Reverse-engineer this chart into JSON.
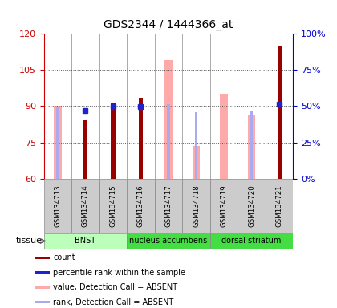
{
  "title": "GDS2344 / 1444366_at",
  "samples": [
    "GSM134713",
    "GSM134714",
    "GSM134715",
    "GSM134716",
    "GSM134717",
    "GSM134718",
    "GSM134719",
    "GSM134720",
    "GSM134721"
  ],
  "tissues": [
    {
      "label": "BNST",
      "start": 0,
      "end": 3,
      "color": "#bbffbb"
    },
    {
      "label": "nucleus accumbens",
      "start": 3,
      "end": 6,
      "color": "#44dd44"
    },
    {
      "label": "dorsal striatum",
      "start": 6,
      "end": 9,
      "color": "#44ee44"
    }
  ],
  "ylim_left": [
    60,
    120
  ],
  "ylim_right": [
    0,
    100
  ],
  "yticks_left": [
    60,
    75,
    90,
    105,
    120
  ],
  "yticks_right": [
    0,
    25,
    50,
    75,
    100
  ],
  "count_color": "#990000",
  "rank_color": "#2222cc",
  "absent_value_color": "#ffaaaa",
  "absent_rank_color": "#aaaaee",
  "count_values": [
    null,
    84.5,
    91.5,
    93.5,
    null,
    null,
    null,
    null,
    115.0
  ],
  "rank_pct_values": [
    null,
    47.0,
    49.5,
    49.5,
    null,
    null,
    null,
    null,
    51.5
  ],
  "absent_value_values": [
    90.0,
    null,
    null,
    null,
    109.0,
    73.5,
    95.0,
    86.5,
    null
  ],
  "absent_rank_pct": [
    49.0,
    null,
    null,
    51.0,
    51.5,
    46.0,
    null,
    47.0,
    null
  ],
  "count_bar_width": 0.15,
  "absent_bar_width": 0.15,
  "absent_value_bar_width": 0.28,
  "background_color": "#ffffff",
  "left_tick_color": "#cc0000",
  "right_tick_color": "#0000cc",
  "grid_linestyle": ":",
  "grid_color": "#555555"
}
